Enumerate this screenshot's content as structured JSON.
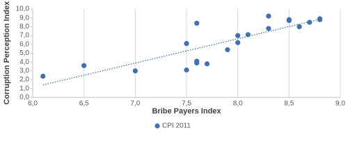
{
  "chart_data": {
    "type": "scatter",
    "xlabel": "Bribe Payers Index",
    "ylabel": "Corruption Perception Index",
    "x": [
      6.1,
      6.5,
      7.0,
      7.5,
      7.5,
      7.6,
      7.6,
      7.6,
      7.7,
      7.9,
      8.0,
      8.0,
      8.1,
      8.3,
      8.3,
      8.5,
      8.5,
      8.6,
      8.7,
      8.8,
      8.8
    ],
    "series": [
      {
        "name": "CPI 2011",
        "color": "#3f6fb5",
        "values": [
          2.4,
          3.6,
          3.0,
          3.1,
          6.1,
          8.4,
          4.1,
          3.9,
          3.8,
          5.4,
          7.0,
          6.2,
          7.1,
          9.2,
          7.8,
          8.8,
          8.7,
          8.0,
          8.5,
          8.9,
          8.8
        ]
      }
    ],
    "trendline": "linear",
    "xlim": [
      6,
      9
    ],
    "xticks": [
      {
        "value": 6,
        "label": "6,0"
      },
      {
        "value": 6.5,
        "label": "6,5"
      },
      {
        "value": 7,
        "label": "7,0"
      },
      {
        "value": 7.5,
        "label": "7,5"
      },
      {
        "value": 8,
        "label": "8,0"
      },
      {
        "value": 8.5,
        "label": "8,5"
      },
      {
        "value": 9,
        "label": "9,0"
      }
    ],
    "ylim": [
      0,
      10
    ],
    "yticks": [
      {
        "value": 0,
        "label": "0,0"
      },
      {
        "value": 1,
        "label": "1,0"
      },
      {
        "value": 2,
        "label": "2,0"
      },
      {
        "value": 3,
        "label": "3,0"
      },
      {
        "value": 4,
        "label": "4,0"
      },
      {
        "value": 5,
        "label": "5,0"
      },
      {
        "value": 6,
        "label": "6,0"
      },
      {
        "value": 7,
        "label": "7,0"
      },
      {
        "value": 8,
        "label": "8,0"
      },
      {
        "value": 9,
        "label": "9,0"
      },
      {
        "value": 10,
        "label": "10,0"
      }
    ],
    "grid": "x",
    "legend": "bottom"
  }
}
